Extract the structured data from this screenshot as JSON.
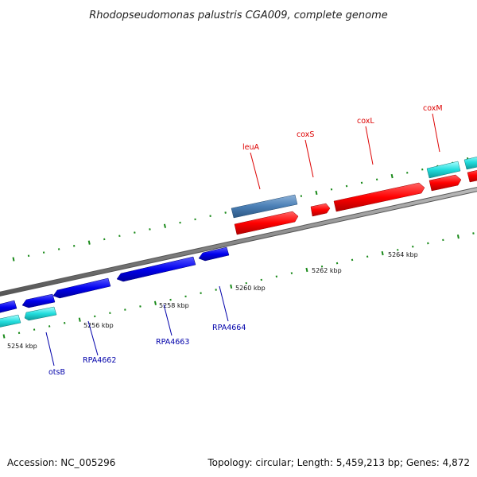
{
  "title": "Rhodopseudomonas palustris CGA009, complete genome",
  "footer": {
    "accession": "Accession: NC_005296",
    "summary": "Topology: circular; Length: 5,459,213 bp; Genes: 4,872"
  },
  "colors": {
    "forward_label": "#dd0000",
    "reverse_label": "#0000aa",
    "backbone": "#888888",
    "tick": "#1a8a1a",
    "red_gene": "#ff0000",
    "blue_gene": "#0000ee",
    "steel_gene": "#4a7fb5",
    "cyan_gene": "#22dddd"
  },
  "scale_labels": [
    "5254 kbp",
    "5256 kbp",
    "5258 kbp",
    "5260 kbp",
    "5262 kbp",
    "5264 kbp"
  ],
  "forward_gene_labels": [
    "leuA",
    "coxS",
    "coxL",
    "coxM"
  ],
  "reverse_gene_labels": [
    "otsB",
    "RPA4662",
    "RPA4663",
    "RPA4664"
  ]
}
